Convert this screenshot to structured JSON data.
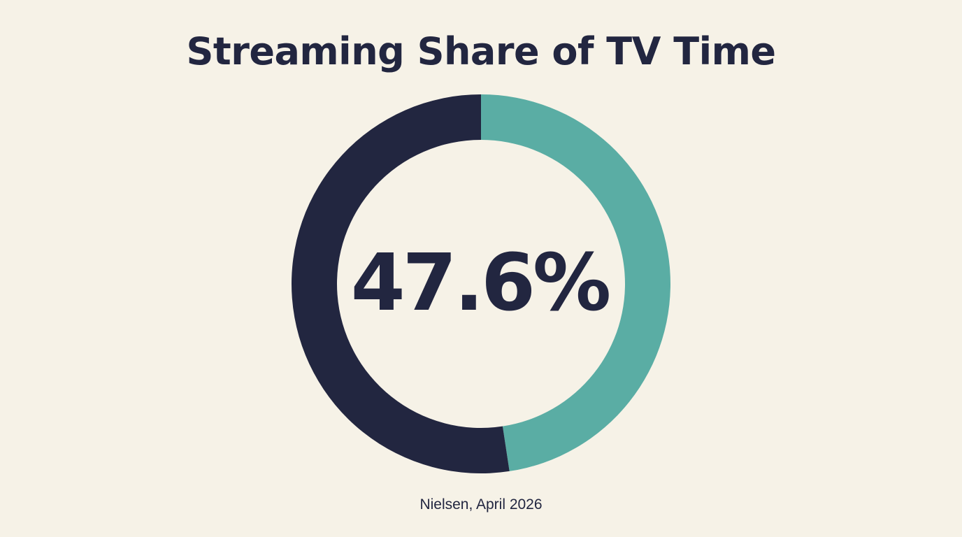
{
  "chart_data": {
    "type": "pie",
    "variant": "donut",
    "title": "Streaming Share of TV Time",
    "center_label": "47.6%",
    "source": "Nielsen, April 2026",
    "slices": [
      {
        "value": 47.6,
        "color": "#5aada4"
      },
      {
        "value": 52.4,
        "color": "#222640"
      }
    ]
  }
}
